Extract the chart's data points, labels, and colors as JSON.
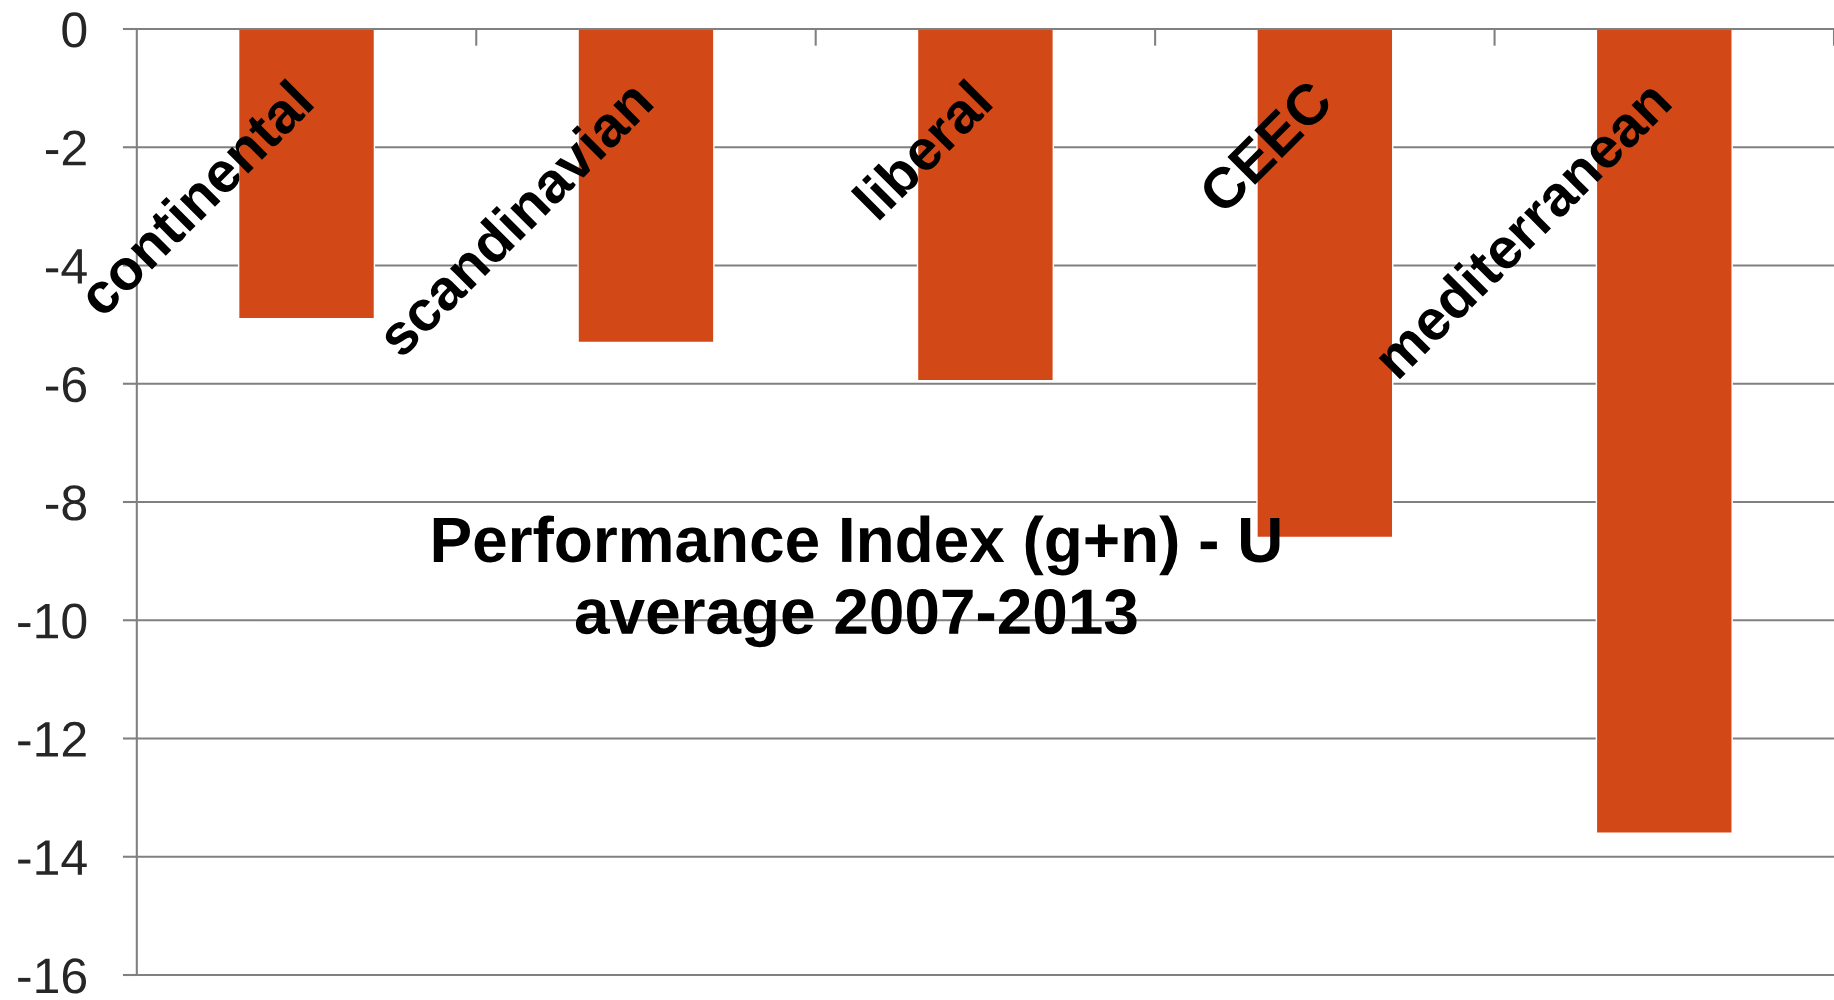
{
  "chart_data": {
    "type": "bar",
    "title": "Performance Index (g+n) - U",
    "subtitle": "average 2007-2013",
    "categories": [
      "continental",
      "scandinavian",
      "liberal",
      "CEEC",
      "mediterranean"
    ],
    "values": [
      -4.9,
      -5.3,
      -5.95,
      -8.6,
      -13.6
    ],
    "color": "#d34817",
    "ylim": [
      -16,
      0
    ],
    "yticks": [
      0,
      -2,
      -4,
      -6,
      -8,
      -10,
      -12,
      -14,
      -16
    ],
    "grid": "y"
  }
}
